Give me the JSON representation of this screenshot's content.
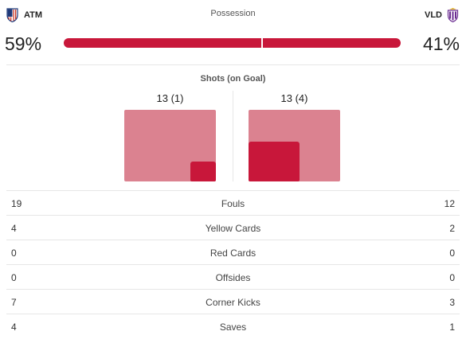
{
  "home": {
    "abbr": "ATM",
    "crest_color": "#cb3524",
    "possession": "59%",
    "possession_value": 59,
    "shots_label": "13 (1)",
    "shots_total": 13,
    "shots_on_goal": 1
  },
  "away": {
    "abbr": "VLD",
    "crest_color": "#6b2c91",
    "possession": "41%",
    "possession_value": 41,
    "shots_label": "13 (4)",
    "shots_total": 13,
    "shots_on_goal": 4
  },
  "possession_title": "Possession",
  "shots_title": "Shots (on Goal)",
  "colors": {
    "accent": "#c8173a",
    "shots_total": "#db8290"
  },
  "stats": [
    {
      "label": "Fouls",
      "home": "19",
      "away": "12"
    },
    {
      "label": "Yellow Cards",
      "home": "4",
      "away": "2"
    },
    {
      "label": "Red Cards",
      "home": "0",
      "away": "0"
    },
    {
      "label": "Offsides",
      "home": "0",
      "away": "0"
    },
    {
      "label": "Corner Kicks",
      "home": "7",
      "away": "3"
    },
    {
      "label": "Saves",
      "home": "4",
      "away": "1"
    }
  ]
}
